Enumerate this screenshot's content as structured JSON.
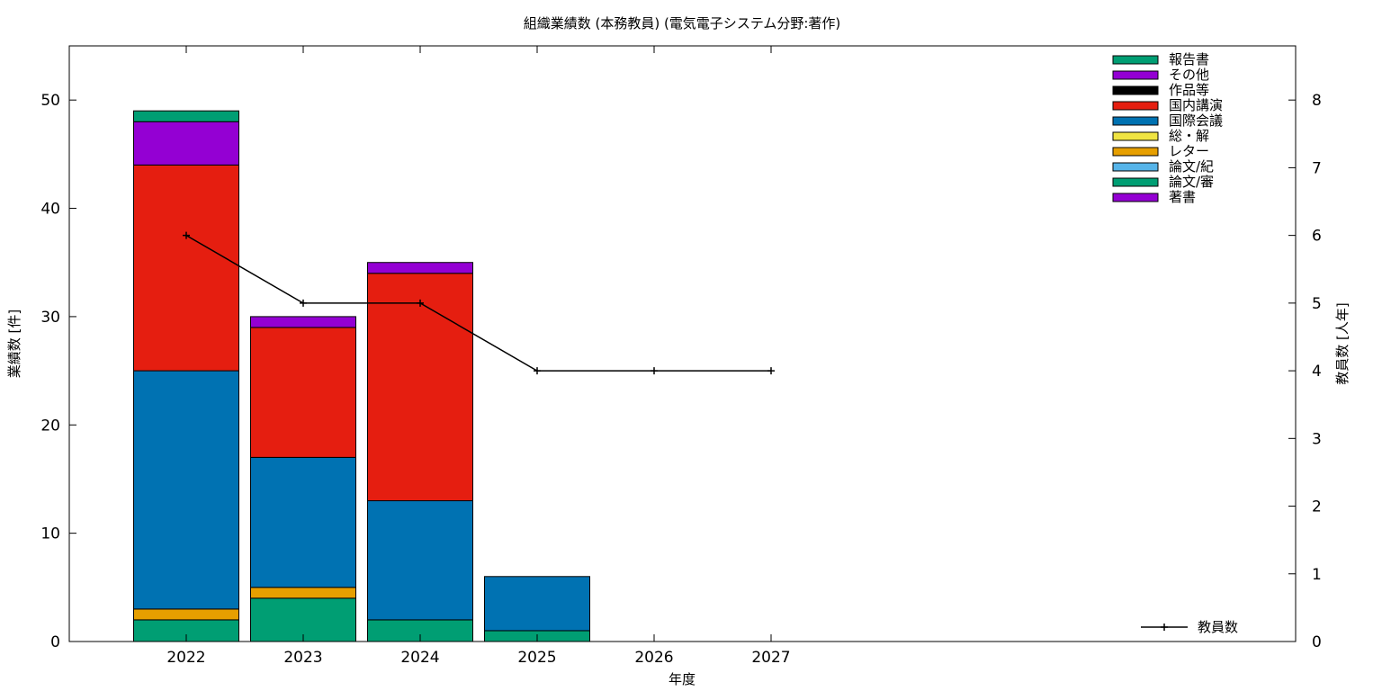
{
  "chart_data": {
    "type": "bar",
    "stacked": true,
    "title": "組織業績数 (本務教員) (電気電子システム分野:著作)",
    "xlabel": "年度",
    "ylabel": "業績数 [件]",
    "y2label": "教員数 [人年]",
    "categories": [
      "2022",
      "2023",
      "2024",
      "2025",
      "2026",
      "2027"
    ],
    "ylim": [
      0,
      55
    ],
    "yticks": [
      0,
      10,
      20,
      30,
      40,
      50
    ],
    "y2lim": [
      0,
      8.8
    ],
    "y2ticks": [
      0,
      1,
      2,
      3,
      4,
      5,
      6,
      7,
      8
    ],
    "grid": false,
    "legend_position": "top-right",
    "series": [
      {
        "name": "著書",
        "color": "#9400d3",
        "values": [
          0,
          0,
          0,
          0,
          0,
          0
        ]
      },
      {
        "name": "論文/審",
        "color": "#009e73",
        "values": [
          2,
          4,
          2,
          1,
          0,
          0
        ]
      },
      {
        "name": "論文/紀",
        "color": "#56b4e9",
        "values": [
          0,
          0,
          0,
          0,
          0,
          0
        ]
      },
      {
        "name": "レター",
        "color": "#e69f00",
        "values": [
          1,
          1,
          0,
          0,
          0,
          0
        ]
      },
      {
        "name": "総・解",
        "color": "#f0e442",
        "values": [
          0,
          0,
          0,
          0,
          0,
          0
        ]
      },
      {
        "name": "国際会議",
        "color": "#0072b2",
        "values": [
          22,
          12,
          11,
          5,
          0,
          0
        ]
      },
      {
        "name": "国内講演",
        "color": "#e51e10",
        "values": [
          19,
          12,
          21,
          0,
          0,
          0
        ]
      },
      {
        "name": "作品等",
        "color": "#000000",
        "values": [
          0,
          0,
          0,
          0,
          0,
          0
        ]
      },
      {
        "name": "その他",
        "color": "#9400d3",
        "values": [
          4,
          1,
          1,
          0,
          0,
          0
        ]
      },
      {
        "name": "報告書",
        "color": "#009e73",
        "values": [
          1,
          0,
          0,
          0,
          0,
          0
        ]
      }
    ],
    "line_series": {
      "name": "教員数",
      "axis": "y2",
      "color": "#000000",
      "values": [
        6,
        5,
        5,
        4,
        4,
        4
      ]
    }
  }
}
